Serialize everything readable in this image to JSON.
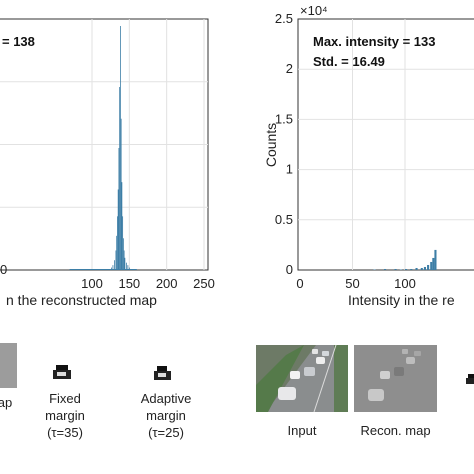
{
  "chart_data": [
    {
      "type": "histogram",
      "title": "",
      "xlabel": "n the reconstructed map",
      "ylabel": "",
      "xlim": [
        0,
        255
      ],
      "x_ticks": [
        "100",
        "150",
        "200",
        "250"
      ],
      "y_ticks": [
        "0"
      ],
      "annotations": [
        "= 138"
      ],
      "peak_x": 138,
      "bin_centers": [
        126,
        128,
        130,
        132,
        133,
        134,
        135,
        136,
        137,
        138,
        139,
        140,
        141,
        142,
        143,
        144,
        146,
        148,
        150
      ],
      "counts_relative": [
        0.01,
        0.02,
        0.04,
        0.08,
        0.14,
        0.22,
        0.33,
        0.5,
        0.75,
        1.0,
        0.62,
        0.36,
        0.22,
        0.13,
        0.08,
        0.05,
        0.03,
        0.02,
        0.01
      ],
      "grid": true,
      "bar_color": "#3d7ea6"
    },
    {
      "type": "histogram",
      "title": "",
      "xlabel": "Intensity in the re",
      "ylabel": "Counts",
      "y_exponent": "×10⁴",
      "ylim": [
        0,
        2.5
      ],
      "y_ticks": [
        "0",
        "0.5",
        "1",
        "1.5",
        "2",
        "2.5"
      ],
      "x_ticks": [
        "0",
        "50",
        "100"
      ],
      "annotations": [
        "Max. intensity = 133",
        "Std. = 16.49"
      ],
      "bins": [
        [
          70,
          0.005
        ],
        [
          80,
          0.01
        ],
        [
          90,
          0.01
        ],
        [
          95,
          0.005
        ],
        [
          100,
          0.01
        ],
        [
          105,
          0.01
        ],
        [
          110,
          0.02
        ],
        [
          115,
          0.02
        ],
        [
          118,
          0.03
        ],
        [
          121,
          0.05
        ],
        [
          124,
          0.08
        ],
        [
          126,
          0.12
        ],
        [
          128,
          0.2
        ]
      ],
      "grid": true,
      "bar_color": "#3d7ea6"
    }
  ],
  "bottom_left": {
    "captions": [
      {
        "lines": [
          "ap"
        ]
      },
      {
        "lines": [
          "Fixed",
          "margin",
          "(τ=35)"
        ]
      },
      {
        "lines": [
          "Adaptive",
          "margin",
          "(τ=25)"
        ]
      }
    ]
  },
  "bottom_right": {
    "captions": [
      {
        "lines": [
          "Input"
        ]
      },
      {
        "lines": [
          "Recon. map"
        ]
      }
    ]
  }
}
